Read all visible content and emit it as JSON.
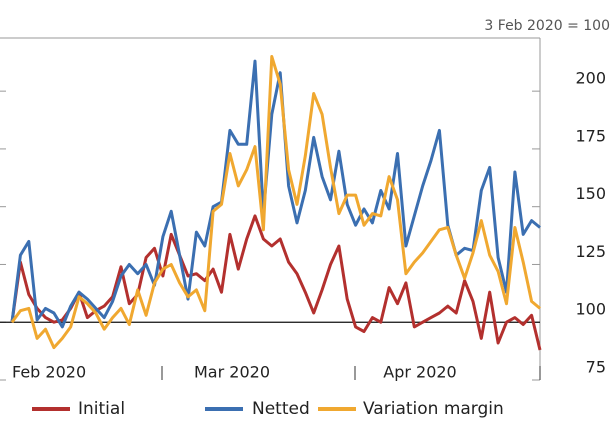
{
  "chart_data": {
    "type": "line",
    "annotation": "3 Feb 2020 = 100",
    "categories": [
      null,
      null,
      null,
      null,
      null,
      null,
      null,
      null,
      null,
      null,
      null,
      null,
      null,
      null,
      null,
      null,
      null,
      null,
      null,
      null,
      null,
      null,
      null,
      null,
      null,
      null,
      null,
      null,
      null,
      null,
      null,
      null,
      null,
      null,
      null,
      null,
      null,
      null,
      null,
      null,
      null,
      null,
      null,
      null,
      null,
      null,
      null,
      null,
      null,
      null,
      null,
      null,
      null,
      null,
      null,
      null,
      null,
      null,
      null,
      null,
      null,
      null,
      null,
      null
    ],
    "month_labels": [
      "Feb 2020",
      "Mar 2020",
      "Apr 2020"
    ],
    "ylim": [
      75,
      223
    ],
    "yticks": [
      75,
      100,
      125,
      150,
      175,
      200
    ],
    "reference_line": 100,
    "legend": "bottom",
    "series": [
      {
        "name": "Initial",
        "color": "#b3302e",
        "values": [
          100,
          126,
          112,
          106,
          102,
          100,
          101,
          106,
          113,
          102,
          105,
          107,
          111,
          124,
          108,
          112,
          128,
          132,
          120,
          138,
          129,
          120,
          121,
          118,
          123,
          113,
          138,
          123,
          136,
          146,
          136,
          133,
          136,
          126,
          121,
          113,
          104,
          114,
          125,
          133,
          110,
          98,
          96,
          102,
          100,
          115,
          108,
          117,
          98,
          100,
          102,
          104,
          107,
          104,
          118,
          109,
          93,
          113,
          91,
          100,
          102,
          99,
          103,
          88
        ]
      },
      {
        "name": "Netted",
        "color": "#3b6fb1",
        "values": [
          100,
          129,
          135,
          101,
          106,
          104,
          98,
          107,
          113,
          110,
          106,
          102,
          109,
          120,
          125,
          121,
          125,
          116,
          137,
          148,
          129,
          110,
          139,
          133,
          150,
          152,
          183,
          177,
          177,
          213,
          147,
          190,
          208,
          159,
          143,
          157,
          180,
          163,
          153,
          174,
          151,
          142,
          149,
          143,
          157,
          149,
          173,
          133,
          146,
          159,
          170,
          183,
          142,
          129,
          132,
          131,
          157,
          167,
          128,
          113,
          165,
          138,
          144,
          141
        ]
      },
      {
        "name": "Variation margin",
        "color": "#f0a830",
        "values": [
          100,
          105,
          106,
          93,
          97,
          89,
          93,
          98,
          111,
          108,
          104,
          97,
          102,
          106,
          99,
          114,
          103,
          117,
          123,
          125,
          117,
          111,
          114,
          105,
          148,
          151,
          173,
          159,
          166,
          176,
          140,
          215,
          203,
          166,
          151,
          172,
          199,
          190,
          167,
          147,
          155,
          155,
          142,
          147,
          146,
          163,
          153,
          121,
          126,
          130,
          135,
          140,
          141,
          129,
          119,
          130,
          144,
          129,
          122,
          108,
          141,
          126,
          109,
          106
        ]
      }
    ]
  }
}
